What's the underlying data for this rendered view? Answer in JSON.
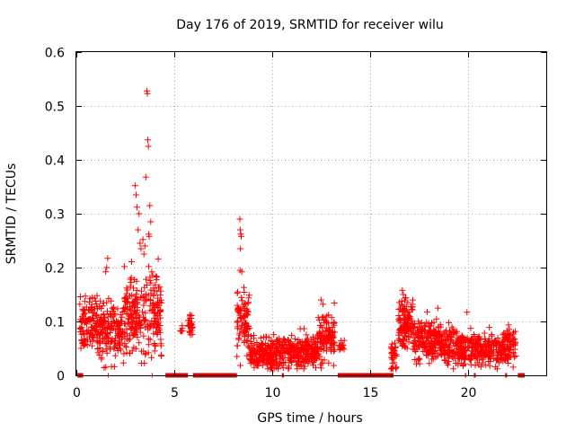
{
  "chart_data": {
    "type": "scatter",
    "title": "Day 176 of 2019, SRMTID for receiver wilu",
    "xlabel": "GPS time / hours",
    "ylabel": "SRMTID / TECUs",
    "xlim": [
      0,
      24
    ],
    "ylim": [
      0,
      0.6
    ],
    "grid": true,
    "legend": "none",
    "marker": "+",
    "colors": {
      "points": "#ff0000",
      "zero_markers": "#dd0000",
      "grid": "#a0a0a0",
      "axes": "#000000"
    },
    "x_ticks": [
      {
        "value": 0,
        "label": "0"
      },
      {
        "value": 5,
        "label": "5"
      },
      {
        "value": 10,
        "label": "10"
      },
      {
        "value": 15,
        "label": "15"
      },
      {
        "value": 20,
        "label": "20"
      }
    ],
    "y_ticks": [
      {
        "value": 0,
        "label": "0"
      },
      {
        "value": 0.1,
        "label": "0.1"
      },
      {
        "value": 0.2,
        "label": "0.2"
      },
      {
        "value": 0.3,
        "label": "0.3"
      },
      {
        "value": 0.4,
        "label": "0.4"
      },
      {
        "value": 0.5,
        "label": "0.5"
      },
      {
        "value": 0.6,
        "label": "0.6"
      }
    ],
    "peaks": [
      {
        "x": 3.6,
        "y": 0.528
      },
      {
        "x": 3.63,
        "y": 0.523
      },
      {
        "x": 3.65,
        "y": 0.437
      },
      {
        "x": 3.68,
        "y": 0.425
      },
      {
        "x": 3.55,
        "y": 0.368
      },
      {
        "x": 3.0,
        "y": 0.352
      },
      {
        "x": 3.05,
        "y": 0.335
      },
      {
        "x": 3.75,
        "y": 0.315
      },
      {
        "x": 3.1,
        "y": 0.312
      },
      {
        "x": 3.2,
        "y": 0.3
      },
      {
        "x": 3.8,
        "y": 0.285
      },
      {
        "x": 3.15,
        "y": 0.27
      },
      {
        "x": 3.7,
        "y": 0.262
      },
      {
        "x": 3.72,
        "y": 0.258
      },
      {
        "x": 3.4,
        "y": 0.252
      },
      {
        "x": 3.25,
        "y": 0.245
      },
      {
        "x": 3.5,
        "y": 0.24
      },
      {
        "x": 3.3,
        "y": 0.235
      },
      {
        "x": 3.45,
        "y": 0.225
      },
      {
        "x": 1.6,
        "y": 0.217
      },
      {
        "x": 1.55,
        "y": 0.2
      },
      {
        "x": 1.5,
        "y": 0.192
      },
      {
        "x": 3.85,
        "y": 0.192
      },
      {
        "x": 3.9,
        "y": 0.185
      },
      {
        "x": 8.35,
        "y": 0.29
      },
      {
        "x": 8.37,
        "y": 0.27
      },
      {
        "x": 8.4,
        "y": 0.262
      },
      {
        "x": 8.42,
        "y": 0.258
      },
      {
        "x": 8.38,
        "y": 0.235
      },
      {
        "x": 8.36,
        "y": 0.195
      },
      {
        "x": 8.45,
        "y": 0.192
      },
      {
        "x": 16.65,
        "y": 0.158
      },
      {
        "x": 16.7,
        "y": 0.15
      },
      {
        "x": 12.5,
        "y": 0.14
      },
      {
        "x": 12.6,
        "y": 0.132
      },
      {
        "x": 19.95,
        "y": 0.117
      }
    ],
    "segments": [
      {
        "x_start": 0.15,
        "x_end": 1.4,
        "n": 170,
        "y_mean": 0.09,
        "y_spread": 0.028
      },
      {
        "x_start": 1.4,
        "x_end": 2.45,
        "n": 120,
        "y_mean": 0.08,
        "y_spread": 0.025
      },
      {
        "x_start": 2.45,
        "x_end": 3.4,
        "n": 130,
        "y_mean": 0.11,
        "y_spread": 0.035
      },
      {
        "x_start": 3.4,
        "x_end": 4.35,
        "n": 120,
        "y_mean": 0.115,
        "y_spread": 0.04
      },
      {
        "x_start": 5.3,
        "x_end": 5.45,
        "n": 6,
        "y_mean": 0.083,
        "y_spread": 0.006
      },
      {
        "x_start": 5.7,
        "x_end": 5.95,
        "n": 30,
        "y_mean": 0.098,
        "y_spread": 0.01
      },
      {
        "x_start": 8.2,
        "x_end": 8.85,
        "n": 90,
        "y_mean": 0.095,
        "y_spread": 0.03
      },
      {
        "x_start": 8.85,
        "x_end": 10.5,
        "n": 220,
        "y_mean": 0.042,
        "y_spread": 0.015
      },
      {
        "x_start": 10.5,
        "x_end": 12.3,
        "n": 230,
        "y_mean": 0.045,
        "y_spread": 0.016
      },
      {
        "x_start": 12.3,
        "x_end": 13.2,
        "n": 120,
        "y_mean": 0.07,
        "y_spread": 0.022
      },
      {
        "x_start": 13.4,
        "x_end": 13.7,
        "n": 15,
        "y_mean": 0.052,
        "y_spread": 0.006
      },
      {
        "x_start": 16.05,
        "x_end": 16.35,
        "n": 30,
        "y_mean": 0.035,
        "y_spread": 0.015
      },
      {
        "x_start": 16.45,
        "x_end": 17.2,
        "n": 120,
        "y_mean": 0.1,
        "y_spread": 0.022
      },
      {
        "x_start": 17.2,
        "x_end": 18.6,
        "n": 190,
        "y_mean": 0.065,
        "y_spread": 0.02
      },
      {
        "x_start": 18.6,
        "x_end": 20.2,
        "n": 200,
        "y_mean": 0.052,
        "y_spread": 0.016
      },
      {
        "x_start": 20.2,
        "x_end": 21.7,
        "n": 170,
        "y_mean": 0.048,
        "y_spread": 0.015
      },
      {
        "x_start": 21.7,
        "x_end": 22.45,
        "n": 90,
        "y_mean": 0.055,
        "y_spread": 0.016
      }
    ],
    "zero_value_ranges": [
      [
        0.05,
        0.35
      ],
      [
        1.6,
        1.65
      ],
      [
        3.85,
        3.9
      ],
      [
        4.55,
        5.7
      ],
      [
        5.95,
        8.2
      ],
      [
        10.5,
        10.6
      ],
      [
        13.35,
        16.2
      ],
      [
        19.85,
        19.92
      ],
      [
        20.3,
        20.4
      ],
      [
        21.9,
        22.0
      ],
      [
        22.55,
        22.9
      ]
    ]
  }
}
